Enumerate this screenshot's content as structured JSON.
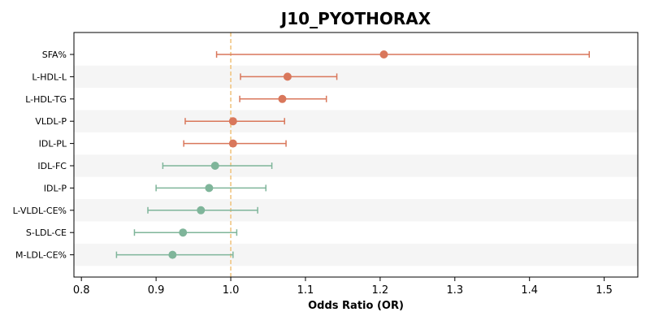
{
  "chart_data": {
    "type": "forest",
    "title": "J10_PYOTHORAX",
    "xlabel": "Odds Ratio (OR)",
    "ylabel": "",
    "xlim": [
      0.79,
      1.545
    ],
    "xticks": [
      "0.8",
      "0.9",
      "1.0",
      "1.1",
      "1.2",
      "1.3",
      "1.4",
      "1.5"
    ],
    "reference_line": 1.0,
    "grid": false,
    "row_banding": true,
    "colors": {
      "positive": "#d9775b",
      "negative": "#7fb59a",
      "reference": "#f0c27a",
      "band": "#f5f5f5"
    },
    "rows": [
      {
        "label": "SFA%",
        "or": 1.205,
        "lo": 0.981,
        "hi": 1.48,
        "group": "positive"
      },
      {
        "label": "L-HDL-L",
        "or": 1.076,
        "lo": 1.013,
        "hi": 1.142,
        "group": "positive"
      },
      {
        "label": "L-HDL-TG",
        "or": 1.069,
        "lo": 1.012,
        "hi": 1.128,
        "group": "positive"
      },
      {
        "label": "VLDL-P",
        "or": 1.003,
        "lo": 0.939,
        "hi": 1.072,
        "group": "positive"
      },
      {
        "label": "IDL-PL",
        "or": 1.003,
        "lo": 0.937,
        "hi": 1.074,
        "group": "positive"
      },
      {
        "label": "IDL-FC",
        "or": 0.979,
        "lo": 0.909,
        "hi": 1.055,
        "group": "negative"
      },
      {
        "label": "IDL-P",
        "or": 0.971,
        "lo": 0.9,
        "hi": 1.047,
        "group": "negative"
      },
      {
        "label": "L-VLDL-CE%",
        "or": 0.96,
        "lo": 0.889,
        "hi": 1.036,
        "group": "negative"
      },
      {
        "label": "S-LDL-CE",
        "or": 0.936,
        "lo": 0.871,
        "hi": 1.008,
        "group": "negative"
      },
      {
        "label": "M-LDL-CE%",
        "or": 0.922,
        "lo": 0.847,
        "hi": 1.003,
        "group": "negative"
      }
    ]
  }
}
